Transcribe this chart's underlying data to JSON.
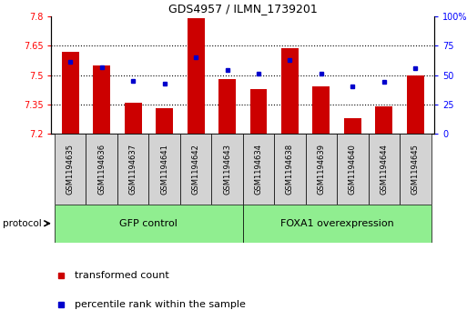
{
  "title": "GDS4957 / ILMN_1739201",
  "samples": [
    "GSM1194635",
    "GSM1194636",
    "GSM1194637",
    "GSM1194641",
    "GSM1194642",
    "GSM1194643",
    "GSM1194634",
    "GSM1194638",
    "GSM1194639",
    "GSM1194640",
    "GSM1194644",
    "GSM1194645"
  ],
  "transformed_count": [
    7.62,
    7.55,
    7.36,
    7.33,
    7.79,
    7.48,
    7.43,
    7.64,
    7.44,
    7.28,
    7.34,
    7.5
  ],
  "percentile_rank": [
    61,
    57,
    45,
    43,
    65,
    54,
    51,
    63,
    51,
    40,
    44,
    56
  ],
  "ylim_left": [
    7.2,
    7.8
  ],
  "ylim_right": [
    0,
    100
  ],
  "yticks_left": [
    7.2,
    7.35,
    7.5,
    7.65,
    7.8
  ],
  "ytick_labels_left": [
    "7.2",
    "7.35",
    "7.5",
    "7.65",
    "7.8"
  ],
  "yticks_right": [
    0,
    25,
    50,
    75,
    100
  ],
  "ytick_labels_right": [
    "0",
    "25",
    "50",
    "75",
    "100%"
  ],
  "hlines": [
    7.35,
    7.5,
    7.65
  ],
  "bar_color": "#cc0000",
  "dot_color": "#0000cc",
  "base_value": 7.2,
  "group1_label": "GFP control",
  "group2_label": "FOXA1 overexpression",
  "group1_indices": [
    0,
    1,
    2,
    3,
    4,
    5
  ],
  "group2_indices": [
    6,
    7,
    8,
    9,
    10,
    11
  ],
  "protocol_label": "protocol",
  "legend_bar_label": "transformed count",
  "legend_dot_label": "percentile rank within the sample",
  "group_color": "#90ee90",
  "tick_area_color": "#d3d3d3",
  "bg_color": "#ffffff"
}
